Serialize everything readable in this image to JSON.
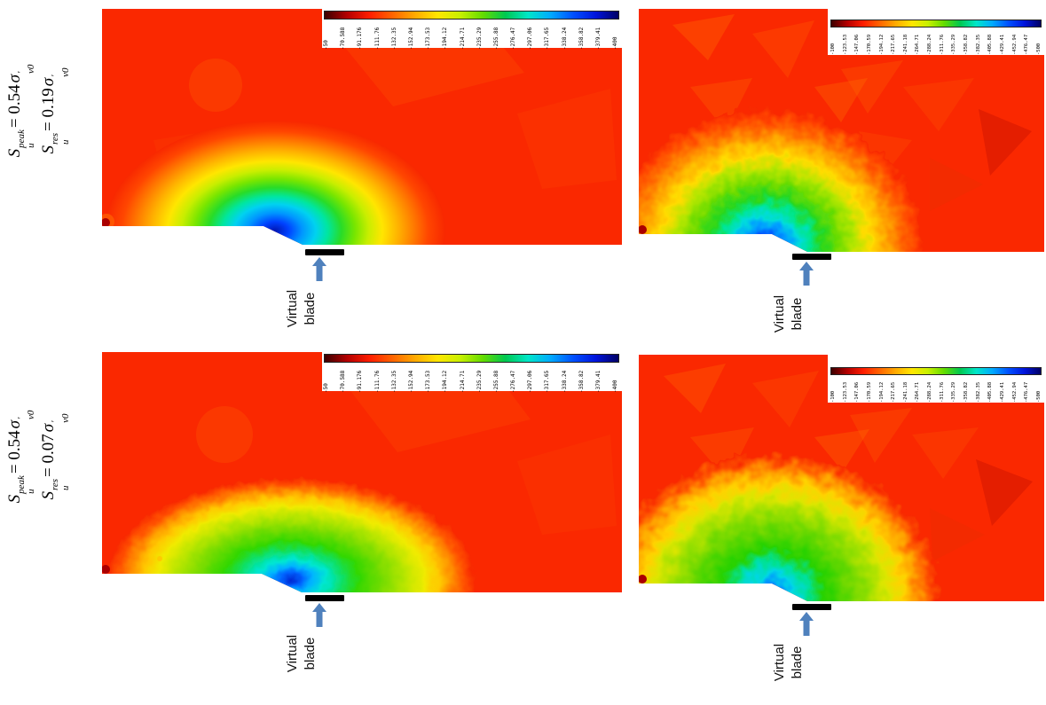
{
  "row_labels": [
    {
      "line1": {
        "var": "S",
        "sup": "peak",
        "sub": "u",
        "eq": "= 0.54",
        "sig": "σ",
        "prime": "′",
        "sigsub": "v0"
      },
      "line2": {
        "var": "S",
        "sup": "res",
        "sub": "u",
        "eq": "= 0.19",
        "sig": "σ",
        "prime": "′",
        "sigsub": "v0"
      }
    },
    {
      "line1": {
        "var": "S",
        "sup": "peak",
        "sub": "u",
        "eq": "= 0.54",
        "sig": "σ",
        "prime": "′",
        "sigsub": "v0"
      },
      "line2": {
        "var": "S",
        "sup": "res",
        "sub": "u",
        "eq": "= 0.07",
        "sig": "σ",
        "prime": "′",
        "sigsub": "v0"
      }
    }
  ],
  "blade_label": {
    "line1": "Virtual",
    "line2": "blade"
  },
  "legend_low": [
    "-50",
    "-70.588",
    "-91.176",
    "-111.76",
    "-132.35",
    "-152.94",
    "-173.53",
    "-194.12",
    "-214.71",
    "-235.29",
    "-255.88",
    "-276.47",
    "-297.06",
    "-317.65",
    "-338.24",
    "-358.82",
    "-379.41",
    "-400"
  ],
  "legend_high": [
    "-100",
    "-123.53",
    "-147.06",
    "-170.59",
    "-194.12",
    "-217.65",
    "-241.18",
    "-264.71",
    "-288.24",
    "-311.76",
    "-335.29",
    "-358.82",
    "-382.35",
    "-405.88",
    "-429.41",
    "-452.94",
    "-476.47",
    "-500"
  ],
  "colors": {
    "field_red": "#fa2800",
    "arrow_blue": "#4f81bd",
    "blade_black": "#000000",
    "colorbar": [
      "#3c0000",
      "#b40000",
      "#ff1e00",
      "#ff6400",
      "#ffaa00",
      "#ffe600",
      "#c8f000",
      "#64dc00",
      "#00c850",
      "#00e6c8",
      "#00aaff",
      "#0050ff",
      "#0014dc",
      "#000064"
    ]
  },
  "chart_data": [
    {
      "type": "heatmap",
      "panel": "top-left",
      "condition": {
        "su_peak": "S_u^peak = 0.54 σ'_v0",
        "su_res": "S_u^res = 0.19 σ'_v0"
      },
      "annotation": "Virtual blade",
      "colorbar_ticks": [
        -50,
        -70.588,
        -91.176,
        -111.76,
        -132.35,
        -152.94,
        -173.53,
        -194.12,
        -214.71,
        -235.29,
        -255.88,
        -276.47,
        -297.06,
        -317.65,
        -338.24,
        -358.82,
        -379.41,
        -400
      ],
      "colorbar_range": [
        -50,
        -400
      ],
      "legend_position": "top-right",
      "grid": false,
      "field_description": "red far field with smooth blue-cyan-green-yellow contour bullseye at the virtual blade; step in bottom boundary at blade"
    },
    {
      "type": "heatmap",
      "panel": "top-right",
      "condition": {
        "su_peak": "S_u^peak = 0.54 σ'_v0",
        "su_res": "S_u^res = 0.19 σ'_v0"
      },
      "annotation": "Virtual blade",
      "colorbar_ticks": [
        -100,
        -123.53,
        -147.06,
        -170.59,
        -194.12,
        -217.65,
        -241.18,
        -264.71,
        -288.24,
        -311.76,
        -335.29,
        -358.82,
        -382.35,
        -405.88,
        -429.41,
        -452.94,
        -476.47,
        -500
      ],
      "colorbar_range": [
        -100,
        -500
      ],
      "legend_position": "top-right",
      "grid": false,
      "field_description": "red faceted far field with large speckled blue-green bullseye left of the virtual blade"
    },
    {
      "type": "heatmap",
      "panel": "bottom-left",
      "condition": {
        "su_peak": "S_u^peak = 0.54 σ'_v0",
        "su_res": "S_u^res = 0.07 σ'_v0"
      },
      "annotation": "Virtual blade",
      "colorbar_ticks": [
        -50,
        -70.588,
        -91.176,
        -111.76,
        -132.35,
        -152.94,
        -173.53,
        -194.12,
        -214.71,
        -235.29,
        -255.88,
        -276.47,
        -297.06,
        -317.65,
        -338.24,
        -358.82,
        -379.41,
        -400
      ],
      "colorbar_range": [
        -50,
        -400
      ],
      "legend_position": "top-right",
      "grid": false,
      "field_description": "red far field with wide flattened green-cyan contour zone and small blue core at the virtual blade"
    },
    {
      "type": "heatmap",
      "panel": "bottom-right",
      "condition": {
        "su_peak": "S_u^peak = 0.54 σ'_v0",
        "su_res": "S_u^res = 0.07 σ'_v0"
      },
      "annotation": "Virtual blade",
      "colorbar_ticks": [
        -100,
        -123.53,
        -147.06,
        -170.59,
        -194.12,
        -217.65,
        -241.18,
        -264.71,
        -288.24,
        -311.76,
        -335.29,
        -358.82,
        -382.35,
        -405.88,
        -429.41,
        -452.94,
        -476.47,
        -500
      ],
      "colorbar_range": [
        -100,
        -500
      ],
      "legend_position": "top-right",
      "grid": false,
      "field_description": "red faceted far field with large speckled green mass and cyan-blue core at the virtual blade"
    }
  ]
}
